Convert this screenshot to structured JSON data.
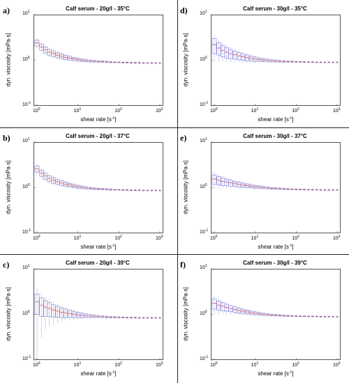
{
  "figure": {
    "ylabel": "dyn. viscosity [mPa·s]",
    "xlabel": "shear rate [s",
    "xlabel_exp": "-1",
    "xlabel_close": "]",
    "tick_base": "10",
    "x_tick_exponents": [
      "0",
      "1",
      "2",
      "3"
    ],
    "y_tick_exponents": [
      "1",
      "0",
      "-1"
    ]
  },
  "chart_data": [
    {
      "type": "box",
      "letter": "a)",
      "title": "Calf serum - 20g/l - 35°C",
      "xlabel": "shear rate [s-1]",
      "ylabel": "dyn. viscosity [mPa·s]",
      "xscale": "log",
      "yscale": "log",
      "xlim": [
        1,
        1000
      ],
      "ylim": [
        0.1,
        10
      ],
      "x": [
        1.0,
        1.3,
        1.6,
        2.0,
        2.5,
        3.2,
        4.0,
        5.0,
        6.3,
        7.9,
        10.0,
        12.6,
        15.8,
        20.0,
        25.1,
        31.6,
        39.8,
        50.1,
        63.1,
        79.4,
        100,
        126,
        158,
        200,
        251,
        316,
        398,
        501,
        631,
        794,
        1000
      ],
      "median": [
        2.4,
        1.95,
        1.7,
        1.5,
        1.4,
        1.3,
        1.22,
        1.16,
        1.11,
        1.07,
        1.03,
        1.0,
        0.98,
        0.96,
        0.95,
        0.94,
        0.93,
        0.92,
        0.91,
        0.9,
        0.9,
        0.89,
        0.89,
        0.88,
        0.88,
        0.88,
        0.87,
        0.87,
        0.87,
        0.87,
        0.87
      ],
      "spread": [
        0.35,
        0.3,
        0.26,
        0.22,
        0.2,
        0.17,
        0.15,
        0.13,
        0.11,
        0.09,
        0.08,
        0.07,
        0.06,
        0.05,
        0.04,
        0.04,
        0.03,
        0.03,
        0.03,
        0.02,
        0.02,
        0.02,
        0.02,
        0.02,
        0.02,
        0.02,
        0.02,
        0.02,
        0.02,
        0.02,
        0.02
      ],
      "whisker": [
        0.55,
        0.45,
        0.4,
        0.35,
        0.3,
        0.26,
        0.22,
        0.19,
        0.16,
        0.13,
        0.11,
        0.1,
        0.08,
        0.07,
        0.06,
        0.05,
        0.05,
        0.04,
        0.04,
        0.03,
        0.03,
        0.03,
        0.03,
        0.03,
        0.03,
        0.03,
        0.03,
        0.03,
        0.03,
        0.03,
        0.03
      ]
    },
    {
      "type": "box",
      "letter": "b)",
      "title": "Calf serum - 20g/l - 37°C",
      "xlabel": "shear rate [s-1]",
      "ylabel": "dyn. viscosity [mPa·s]",
      "xscale": "log",
      "yscale": "log",
      "xlim": [
        1,
        1000
      ],
      "ylim": [
        0.1,
        10
      ],
      "x": [
        1.0,
        1.3,
        1.6,
        2.0,
        2.5,
        3.2,
        4.0,
        5.0,
        6.3,
        7.9,
        10.0,
        12.6,
        15.8,
        20.0,
        25.1,
        31.6,
        39.8,
        50.1,
        63.1,
        79.4,
        100,
        126,
        158,
        200,
        251,
        316,
        398,
        501,
        631,
        794,
        1000
      ],
      "median": [
        2.6,
        2.1,
        1.8,
        1.6,
        1.45,
        1.35,
        1.26,
        1.2,
        1.14,
        1.09,
        1.05,
        1.02,
        0.99,
        0.97,
        0.95,
        0.94,
        0.93,
        0.92,
        0.91,
        0.9,
        0.9,
        0.89,
        0.89,
        0.88,
        0.88,
        0.88,
        0.87,
        0.87,
        0.87,
        0.87,
        0.87
      ],
      "spread": [
        0.4,
        0.32,
        0.27,
        0.23,
        0.2,
        0.17,
        0.15,
        0.13,
        0.11,
        0.09,
        0.08,
        0.07,
        0.06,
        0.05,
        0.04,
        0.04,
        0.03,
        0.03,
        0.03,
        0.02,
        0.02,
        0.02,
        0.02,
        0.02,
        0.02,
        0.02,
        0.02,
        0.02,
        0.02,
        0.02,
        0.02
      ],
      "whisker": [
        0.7,
        0.5,
        0.42,
        0.36,
        0.31,
        0.27,
        0.23,
        0.2,
        0.17,
        0.14,
        0.12,
        0.1,
        0.08,
        0.07,
        0.06,
        0.05,
        0.05,
        0.04,
        0.04,
        0.03,
        0.03,
        0.03,
        0.03,
        0.03,
        0.03,
        0.03,
        0.03,
        0.03,
        0.03,
        0.03,
        0.03
      ]
    },
    {
      "type": "box",
      "letter": "c)",
      "title": "Calf serum - 20g/l - 39°C",
      "xlabel": "shear rate [s-1]",
      "ylabel": "dyn. viscosity [mPa·s]",
      "xscale": "log",
      "yscale": "log",
      "xlim": [
        1,
        1000
      ],
      "ylim": [
        0.1,
        10
      ],
      "x": [
        1.0,
        1.3,
        1.6,
        2.0,
        2.5,
        3.2,
        4.0,
        5.0,
        6.3,
        7.9,
        10.0,
        12.6,
        15.8,
        20.0,
        25.1,
        31.6,
        39.8,
        50.1,
        63.1,
        79.4,
        100,
        126,
        158,
        200,
        251,
        316,
        398,
        501,
        631,
        794,
        1000
      ],
      "median": [
        1.9,
        1.6,
        1.45,
        1.35,
        1.25,
        1.18,
        1.12,
        1.08,
        1.04,
        1.01,
        0.98,
        0.96,
        0.94,
        0.92,
        0.91,
        0.9,
        0.89,
        0.88,
        0.87,
        0.87,
        0.86,
        0.86,
        0.85,
        0.85,
        0.85,
        0.84,
        0.84,
        0.84,
        0.84,
        0.84,
        0.84
      ],
      "spread": [
        0.9,
        0.7,
        0.55,
        0.45,
        0.38,
        0.32,
        0.27,
        0.23,
        0.19,
        0.16,
        0.13,
        0.11,
        0.09,
        0.07,
        0.06,
        0.05,
        0.04,
        0.04,
        0.03,
        0.03,
        0.02,
        0.02,
        0.02,
        0.02,
        0.02,
        0.02,
        0.02,
        0.02,
        0.02,
        0.02,
        0.02
      ],
      "whisker": [
        1.8,
        1.3,
        1.0,
        0.8,
        0.65,
        0.52,
        0.42,
        0.35,
        0.28,
        0.23,
        0.19,
        0.15,
        0.12,
        0.1,
        0.08,
        0.07,
        0.06,
        0.05,
        0.04,
        0.04,
        0.03,
        0.03,
        0.03,
        0.03,
        0.03,
        0.03,
        0.03,
        0.03,
        0.03,
        0.03,
        0.03
      ]
    },
    {
      "type": "box",
      "letter": "d)",
      "title": "Calf serum - 30g/l - 35°C",
      "xlabel": "shear rate [s-1]",
      "ylabel": "dyn. viscosity [mPa·s]",
      "xscale": "log",
      "yscale": "log",
      "xlim": [
        1,
        1000
      ],
      "ylim": [
        0.1,
        10
      ],
      "x": [
        1.0,
        1.3,
        1.6,
        2.0,
        2.5,
        3.2,
        4.0,
        5.0,
        6.3,
        7.9,
        10.0,
        12.6,
        15.8,
        20.0,
        25.1,
        31.6,
        39.8,
        50.1,
        63.1,
        79.4,
        100,
        126,
        158,
        200,
        251,
        316,
        398,
        501,
        631,
        794,
        1000
      ],
      "median": [
        2.2,
        1.85,
        1.65,
        1.5,
        1.4,
        1.32,
        1.25,
        1.19,
        1.14,
        1.1,
        1.06,
        1.03,
        1.01,
        0.99,
        0.97,
        0.96,
        0.95,
        0.94,
        0.93,
        0.93,
        0.92,
        0.92,
        0.91,
        0.91,
        0.91,
        0.9,
        0.9,
        0.9,
        0.9,
        0.9,
        0.9
      ],
      "spread": [
        0.8,
        0.55,
        0.45,
        0.38,
        0.32,
        0.27,
        0.23,
        0.2,
        0.17,
        0.14,
        0.12,
        0.1,
        0.08,
        0.07,
        0.06,
        0.05,
        0.04,
        0.04,
        0.03,
        0.03,
        0.02,
        0.02,
        0.02,
        0.02,
        0.02,
        0.02,
        0.02,
        0.02,
        0.02,
        0.02,
        0.02
      ],
      "whisker": [
        1.3,
        0.9,
        0.7,
        0.6,
        0.5,
        0.42,
        0.35,
        0.3,
        0.25,
        0.21,
        0.17,
        0.14,
        0.12,
        0.1,
        0.08,
        0.07,
        0.06,
        0.05,
        0.04,
        0.04,
        0.03,
        0.03,
        0.03,
        0.03,
        0.03,
        0.03,
        0.03,
        0.03,
        0.03,
        0.03,
        0.03
      ]
    },
    {
      "type": "box",
      "letter": "e)",
      "title": "Calf serum - 30g/l - 37°C",
      "xlabel": "shear rate [s-1]",
      "ylabel": "dyn. viscosity [mPa·s]",
      "xscale": "log",
      "yscale": "log",
      "xlim": [
        1,
        1000
      ],
      "ylim": [
        0.1,
        10
      ],
      "x": [
        1.0,
        1.3,
        1.6,
        2.0,
        2.5,
        3.2,
        4.0,
        5.0,
        6.3,
        7.9,
        10.0,
        12.6,
        15.8,
        20.0,
        25.1,
        31.6,
        39.8,
        50.1,
        63.1,
        79.4,
        100,
        126,
        158,
        200,
        251,
        316,
        398,
        501,
        631,
        794,
        1000
      ],
      "median": [
        1.55,
        1.45,
        1.38,
        1.32,
        1.27,
        1.22,
        1.18,
        1.14,
        1.11,
        1.08,
        1.05,
        1.03,
        1.01,
        0.99,
        0.97,
        0.96,
        0.95,
        0.94,
        0.93,
        0.92,
        0.92,
        0.91,
        0.91,
        0.9,
        0.9,
        0.9,
        0.89,
        0.89,
        0.89,
        0.89,
        0.89
      ],
      "spread": [
        0.35,
        0.3,
        0.26,
        0.22,
        0.19,
        0.16,
        0.14,
        0.12,
        0.1,
        0.09,
        0.08,
        0.07,
        0.06,
        0.05,
        0.04,
        0.04,
        0.03,
        0.03,
        0.03,
        0.02,
        0.02,
        0.02,
        0.02,
        0.02,
        0.02,
        0.02,
        0.02,
        0.02,
        0.02,
        0.02,
        0.02
      ],
      "whisker": [
        0.6,
        0.5,
        0.42,
        0.35,
        0.3,
        0.26,
        0.22,
        0.19,
        0.16,
        0.14,
        0.12,
        0.1,
        0.08,
        0.07,
        0.06,
        0.05,
        0.05,
        0.04,
        0.04,
        0.03,
        0.03,
        0.03,
        0.03,
        0.03,
        0.03,
        0.03,
        0.03,
        0.03,
        0.03,
        0.03,
        0.03
      ]
    },
    {
      "type": "box",
      "letter": "f)",
      "title": "Calf serum - 30g/l - 39°C",
      "xlabel": "shear rate [s-1]",
      "ylabel": "dyn. viscosity [mPa·s]",
      "xscale": "log",
      "yscale": "log",
      "xlim": [
        1,
        1000
      ],
      "ylim": [
        0.1,
        10
      ],
      "x": [
        1.0,
        1.3,
        1.6,
        2.0,
        2.5,
        3.2,
        4.0,
        5.0,
        6.3,
        7.9,
        10.0,
        12.6,
        15.8,
        20.0,
        25.1,
        31.6,
        39.8,
        50.1,
        63.1,
        79.4,
        100,
        126,
        158,
        200,
        251,
        316,
        398,
        501,
        631,
        794,
        1000
      ],
      "median": [
        1.75,
        1.6,
        1.5,
        1.42,
        1.35,
        1.28,
        1.22,
        1.17,
        1.13,
        1.09,
        1.06,
        1.03,
        1.01,
        0.99,
        0.97,
        0.96,
        0.95,
        0.94,
        0.93,
        0.92,
        0.92,
        0.91,
        0.91,
        0.9,
        0.9,
        0.9,
        0.89,
        0.89,
        0.89,
        0.89,
        0.89
      ],
      "spread": [
        0.45,
        0.36,
        0.3,
        0.25,
        0.21,
        0.18,
        0.15,
        0.13,
        0.11,
        0.09,
        0.08,
        0.07,
        0.06,
        0.05,
        0.04,
        0.04,
        0.03,
        0.03,
        0.03,
        0.02,
        0.02,
        0.02,
        0.02,
        0.02,
        0.02,
        0.02,
        0.02,
        0.02,
        0.02,
        0.02,
        0.02
      ],
      "whisker": [
        0.8,
        0.6,
        0.5,
        0.42,
        0.35,
        0.3,
        0.25,
        0.21,
        0.18,
        0.15,
        0.12,
        0.1,
        0.08,
        0.07,
        0.06,
        0.05,
        0.05,
        0.04,
        0.04,
        0.03,
        0.03,
        0.03,
        0.03,
        0.03,
        0.03,
        0.03,
        0.03,
        0.03,
        0.03,
        0.03,
        0.03
      ]
    }
  ],
  "colors": {
    "box": "#7b7bd6",
    "median": "#d43b3b",
    "whisker": "#4a4ac8",
    "axis": "#555555",
    "divider": "#222222"
  }
}
